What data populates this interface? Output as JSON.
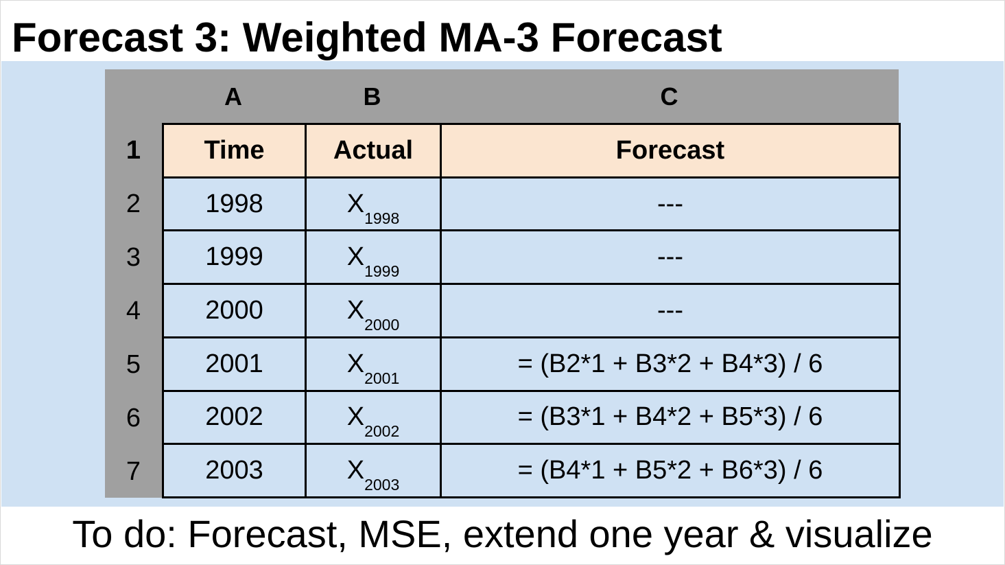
{
  "title": "Forecast 3: Weighted MA-3 Forecast",
  "spreadsheet": {
    "column_letters": [
      "A",
      "B",
      "C"
    ],
    "row_numbers": [
      "1",
      "2",
      "3",
      "4",
      "5",
      "6",
      "7"
    ],
    "headers": {
      "time": "Time",
      "actual": "Actual",
      "forecast": "Forecast"
    },
    "rows": [
      {
        "time": "1998",
        "actual_symbol": "X",
        "actual_subscript": "1998",
        "forecast": "---"
      },
      {
        "time": "1999",
        "actual_symbol": "X",
        "actual_subscript": "1999",
        "forecast": "---"
      },
      {
        "time": "2000",
        "actual_symbol": "X",
        "actual_subscript": "2000",
        "forecast": "---"
      },
      {
        "time": "2001",
        "actual_symbol": "X",
        "actual_subscript": "2001",
        "forecast": "= (B2*1 + B3*2 + B4*3) / 6"
      },
      {
        "time": "2002",
        "actual_symbol": "X",
        "actual_subscript": "2002",
        "forecast": "= (B3*1 + B4*2 + B5*3) / 6"
      },
      {
        "time": "2003",
        "actual_symbol": "X",
        "actual_subscript": "2003",
        "forecast": "= (B4*1 + B5*2 + B6*3) / 6"
      }
    ]
  },
  "footer": "To do: Forecast, MSE, extend one year & visualize",
  "colors": {
    "band": "#cfe1f3",
    "header_fill": "#fbe5d0",
    "sheet_gray": "#a0a0a0"
  }
}
